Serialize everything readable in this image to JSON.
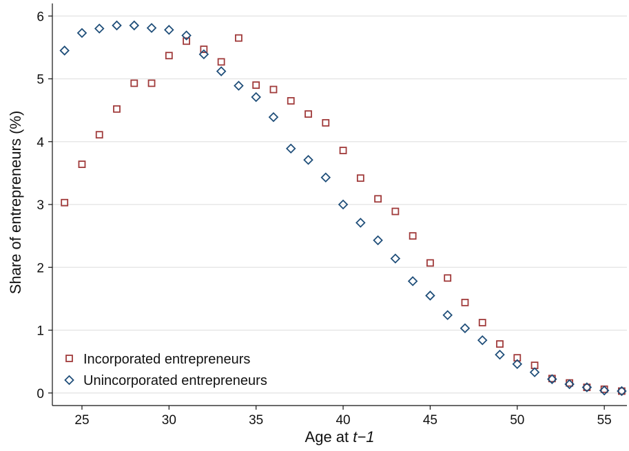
{
  "chart_data": {
    "type": "scatter",
    "title": "",
    "xlabel_prefix": "Age at ",
    "xlabel_italic": "t−1",
    "ylabel": "Share of entrepreneurs (%)",
    "xlim": [
      23.3,
      56.3
    ],
    "ylim": [
      -0.2,
      6.2
    ],
    "xticks": [
      25,
      30,
      35,
      40,
      45,
      50,
      55
    ],
    "yticks": [
      0,
      1,
      2,
      3,
      4,
      5,
      6
    ],
    "grid": true,
    "legend_position": "bottom-left",
    "x": [
      24,
      25,
      26,
      27,
      28,
      29,
      30,
      31,
      32,
      33,
      34,
      35,
      36,
      37,
      38,
      39,
      40,
      41,
      42,
      43,
      44,
      45,
      46,
      47,
      48,
      49,
      50,
      51,
      52,
      53,
      54,
      55,
      56
    ],
    "series": [
      {
        "name": "Incorporated entrepreneurs",
        "marker": "square",
        "color": "#a03a3a",
        "values": [
          3.03,
          3.64,
          4.11,
          4.52,
          4.93,
          4.93,
          5.37,
          5.6,
          5.47,
          5.27,
          5.65,
          4.9,
          4.83,
          4.65,
          4.44,
          4.3,
          3.86,
          3.42,
          3.09,
          2.89,
          2.5,
          2.07,
          1.83,
          1.44,
          1.12,
          0.78,
          0.56,
          0.44,
          0.23,
          0.16,
          0.09,
          0.06,
          0.03
        ]
      },
      {
        "name": "Unincorporated entrepreneurs",
        "marker": "diamond",
        "color": "#1f4e79",
        "values": [
          5.45,
          5.73,
          5.8,
          5.85,
          5.85,
          5.81,
          5.78,
          5.69,
          5.39,
          5.12,
          4.89,
          4.71,
          4.39,
          3.89,
          3.71,
          3.43,
          3.0,
          2.71,
          2.43,
          2.14,
          1.78,
          1.55,
          1.24,
          1.03,
          0.84,
          0.61,
          0.46,
          0.33,
          0.22,
          0.14,
          0.09,
          0.04,
          0.03
        ]
      }
    ]
  }
}
